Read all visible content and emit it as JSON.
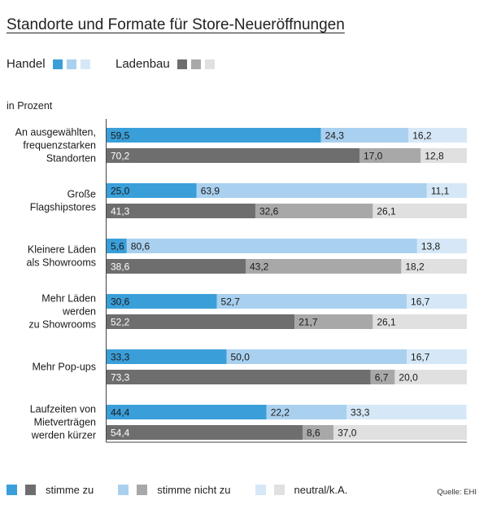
{
  "title": "Standorte und Formate für Store-Neueröffnungen",
  "legend_top": {
    "handel_label": "Handel",
    "ladenbau_label": "Ladenbau"
  },
  "unit_label": "in Prozent",
  "colors": {
    "handel": [
      "#3a9fd9",
      "#a9d0ef",
      "#d6e8f7"
    ],
    "ladenbau": [
      "#6e6e6e",
      "#a8a8a8",
      "#e0e0e0"
    ]
  },
  "legend_bottom": {
    "agree": "stimme zu",
    "disagree": "stimme nicht zu",
    "neutral": "neutral/k.A."
  },
  "source": "Quelle: EHI",
  "chart_data": {
    "type": "bar",
    "orientation": "horizontal",
    "stacked": true,
    "percent": true,
    "xlim": [
      0,
      100
    ],
    "segment_labels": [
      "stimme zu",
      "stimme nicht zu",
      "neutral/k.A."
    ],
    "groups": [
      {
        "label": [
          "An ausgewählten,",
          "frequenzstarken",
          "Standorten"
        ],
        "handel": [
          59.5,
          24.3,
          16.2
        ],
        "ladenbau": [
          70.2,
          17.0,
          12.8
        ]
      },
      {
        "label": [
          "Große",
          "Flagshipstores"
        ],
        "handel": [
          25.0,
          63.9,
          11.1
        ],
        "ladenbau": [
          41.3,
          32.6,
          26.1
        ]
      },
      {
        "label": [
          "Kleinere Läden",
          "als Showrooms"
        ],
        "handel": [
          5.6,
          80.6,
          13.8
        ],
        "ladenbau": [
          38.6,
          43.2,
          18.2
        ]
      },
      {
        "label": [
          "Mehr Läden",
          "werden",
          "zu Showrooms"
        ],
        "handel": [
          30.6,
          52.7,
          16.7
        ],
        "ladenbau": [
          52.2,
          21.7,
          26.1
        ]
      },
      {
        "label": [
          "Mehr Pop-ups"
        ],
        "handel": [
          33.3,
          50.0,
          16.7
        ],
        "ladenbau": [
          73.3,
          6.7,
          20.0
        ]
      },
      {
        "label": [
          "Laufzeiten von",
          "Mietverträgen",
          "werden kürzer"
        ],
        "handel": [
          44.4,
          22.2,
          33.3
        ],
        "ladenbau": [
          54.4,
          8.6,
          37.0
        ]
      }
    ]
  }
}
